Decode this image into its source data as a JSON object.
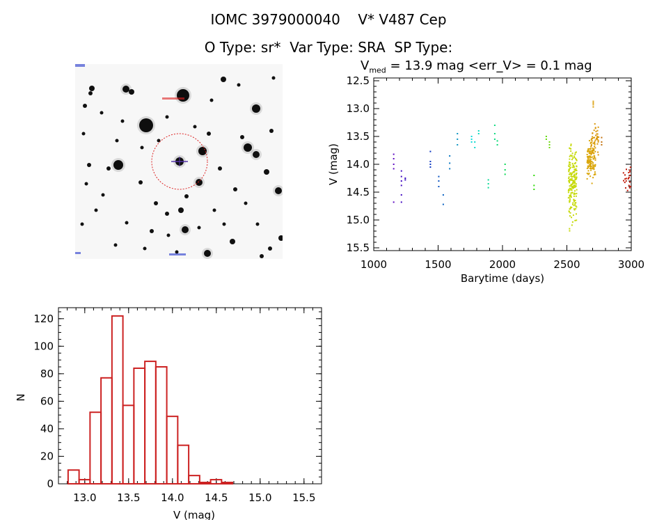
{
  "header": {
    "title": "IOMC 3979000040    V* V487 Cep",
    "subtitle": "O Type: sr*  Var Type: SRA  SP Type:",
    "vmed_prefix": "V",
    "vmed_sub": "med",
    "vmed_suffix": " = 13.9 mag <err_V> = 0.1 mag"
  },
  "thumbnail": {
    "bg": "#f7f7f7",
    "ring_color": "#dd2222",
    "marker_color": "#5533aa",
    "corner_color": "#2233cc"
  },
  "chart_data": [
    {
      "type": "scatter",
      "name": "lightcurve",
      "xlabel": "Barytime (days)",
      "ylabel": "V (mag)",
      "xlim": [
        1000,
        3000
      ],
      "ylim": [
        15.55,
        12.45
      ],
      "y_inverted": true,
      "xticks": [
        1000,
        1500,
        2000,
        2500,
        3000
      ],
      "yticks": [
        12.5,
        13.0,
        13.5,
        14.0,
        14.5,
        15.0,
        15.5
      ],
      "color_scale": "rainbow by time (purple → red)",
      "clusters": [
        {
          "x": 1155,
          "y": [
            13.82,
            13.9,
            14.0,
            14.08,
            14.68
          ]
        },
        {
          "x": 1215,
          "y": [
            14.12,
            14.22,
            14.3,
            14.38,
            14.55,
            14.68
          ]
        },
        {
          "x": 1245,
          "y": [
            14.25,
            14.28
          ]
        },
        {
          "x": 1440,
          "y": [
            13.77,
            13.95,
            14.0,
            14.05
          ]
        },
        {
          "x": 1505,
          "y": [
            14.22,
            14.3,
            14.4
          ]
        },
        {
          "x": 1540,
          "y": [
            14.55,
            14.72
          ]
        },
        {
          "x": 1590,
          "y": [
            13.85,
            13.98,
            14.08
          ]
        },
        {
          "x": 1650,
          "y": [
            13.45,
            13.55,
            13.65
          ]
        },
        {
          "x": 1760,
          "y": [
            13.5,
            13.55,
            13.6
          ]
        },
        {
          "x": 1785,
          "y": [
            13.6,
            13.7
          ]
        },
        {
          "x": 1815,
          "y": [
            13.4,
            13.45
          ]
        },
        {
          "x": 1890,
          "y": [
            14.28,
            14.35,
            14.42
          ]
        },
        {
          "x": 1940,
          "y": [
            13.3,
            13.45,
            13.55
          ]
        },
        {
          "x": 1960,
          "y": [
            13.58,
            13.65
          ]
        },
        {
          "x": 2020,
          "y": [
            14.0,
            14.1,
            14.18
          ]
        },
        {
          "x": 2245,
          "y": [
            14.2,
            14.38,
            14.45
          ]
        },
        {
          "x": 2340,
          "y": [
            13.5,
            13.55
          ]
        },
        {
          "x": 2365,
          "y": [
            13.6,
            13.65,
            13.7
          ]
        },
        {
          "x": 2545,
          "y_range": [
            13.45,
            15.35
          ],
          "count": 190
        },
        {
          "x": 2690,
          "y_range": [
            13.45,
            14.38
          ],
          "count": 130
        },
        {
          "x": 2705,
          "y": [
            12.87,
            12.9,
            12.93,
            12.97
          ]
        },
        {
          "x": 2720,
          "y_range": [
            13.15,
            14.0
          ],
          "count": 40
        },
        {
          "x": 2770,
          "y": [
            13.52,
            13.6,
            13.65
          ]
        },
        {
          "x": 2965,
          "y_range": [
            13.92,
            14.62
          ],
          "count": 22
        }
      ]
    },
    {
      "type": "bar",
      "name": "histogram",
      "xlabel": "V (mag)",
      "ylabel": "N",
      "bin_width": 0.125,
      "bin_edges": [
        12.81,
        12.935,
        13.06,
        13.185,
        13.31,
        13.435,
        13.56,
        13.685,
        13.81,
        13.935,
        14.06,
        14.185,
        14.31,
        14.435,
        14.56,
        14.685,
        14.81,
        14.935,
        15.06,
        15.185,
        15.31,
        15.435
      ],
      "values": [
        10,
        3,
        52,
        77,
        122,
        57,
        84,
        89,
        85,
        49,
        28,
        6,
        1,
        3,
        1,
        0,
        0,
        0,
        0,
        0,
        0
      ],
      "bar_color": "#cc2222",
      "xlim": [
        12.7,
        15.7
      ],
      "ylim": [
        0,
        128
      ],
      "xticks": [
        13.0,
        13.5,
        14.0,
        14.5,
        15.0,
        15.5
      ],
      "yticks": [
        0,
        20,
        40,
        60,
        80,
        100,
        120
      ]
    }
  ]
}
